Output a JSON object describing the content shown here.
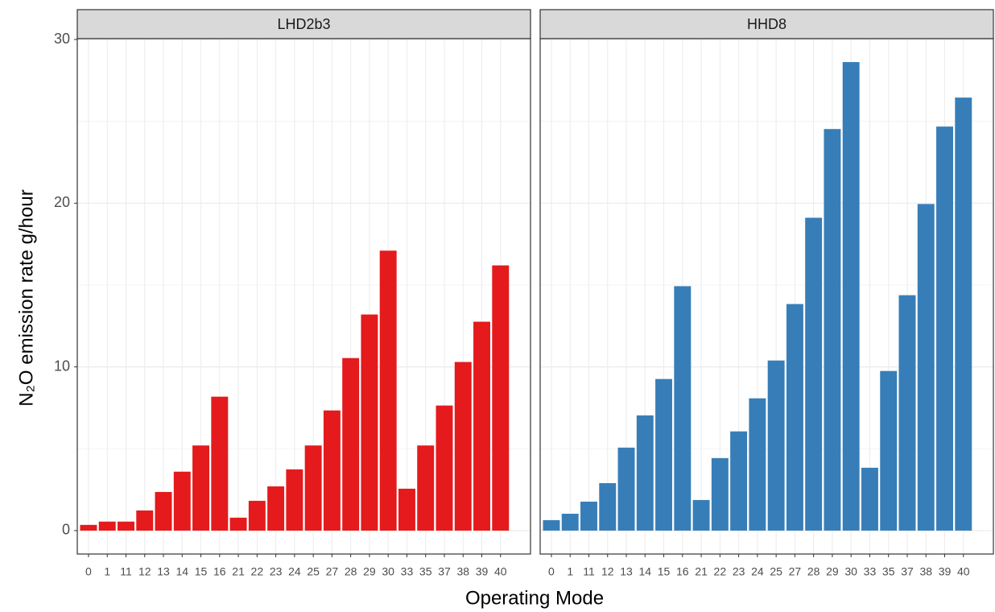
{
  "chart_data": [
    {
      "type": "bar",
      "title": "LHD2b3",
      "ylabel": "N₂O emission rate g/hour",
      "xlabel": "Operating Mode",
      "categories": [
        "0",
        "1",
        "11",
        "12",
        "13",
        "14",
        "15",
        "16",
        "21",
        "22",
        "23",
        "24",
        "25",
        "27",
        "28",
        "29",
        "30",
        "33",
        "35",
        "37",
        "38",
        "39",
        "40"
      ],
      "values": [
        0.35,
        0.55,
        0.55,
        1.23,
        2.36,
        3.6,
        5.2,
        8.18,
        0.79,
        1.82,
        2.7,
        3.74,
        5.2,
        7.34,
        10.54,
        13.2,
        17.1,
        2.56,
        5.2,
        7.64,
        10.3,
        12.76,
        16.2
      ],
      "color": "#e41a1c",
      "ylim": [
        -1.43,
        30.05
      ],
      "yticks": [
        0,
        10,
        20,
        30
      ],
      "grid": true
    },
    {
      "type": "bar",
      "title": "HHD8",
      "categories": [
        "0",
        "1",
        "11",
        "12",
        "13",
        "14",
        "15",
        "16",
        "21",
        "22",
        "23",
        "24",
        "25",
        "27",
        "28",
        "29",
        "30",
        "33",
        "35",
        "37",
        "38",
        "39",
        "40"
      ],
      "values": [
        0.64,
        1.03,
        1.77,
        2.9,
        5.07,
        7.04,
        9.26,
        14.93,
        1.87,
        4.43,
        6.06,
        8.08,
        10.39,
        13.84,
        19.11,
        24.53,
        28.62,
        3.84,
        9.75,
        14.38,
        19.95,
        24.68,
        26.45
      ],
      "color": "#377eb8",
      "ylim": [
        -1.43,
        30.05
      ],
      "yticks": [
        0,
        10,
        20,
        30
      ],
      "grid": true
    }
  ]
}
